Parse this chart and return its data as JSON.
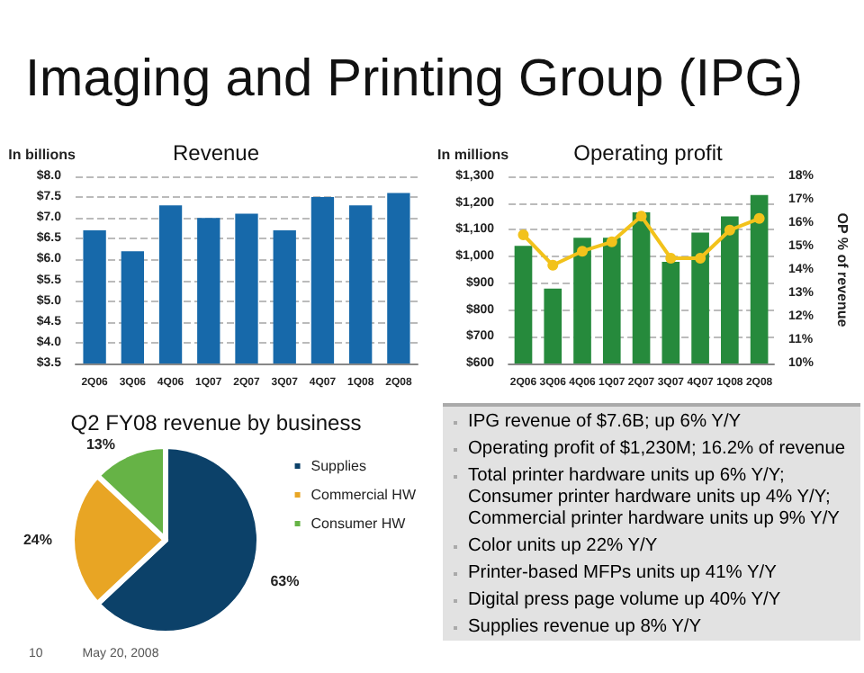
{
  "chart_data": [
    {
      "type": "other",
      "title": "Imaging and Printing Group (IPG)"
    },
    {
      "type": "bar",
      "title": "Revenue",
      "ylabel": "In billions",
      "categories": [
        "2Q06",
        "3Q06",
        "4Q06",
        "1Q07",
        "2Q07",
        "3Q07",
        "4Q07",
        "1Q08",
        "2Q08"
      ],
      "series": [
        {
          "color": "#1769aa",
          "values": [
            6.7,
            6.2,
            7.3,
            7.0,
            7.1,
            6.7,
            7.5,
            7.3,
            7.6
          ]
        }
      ],
      "ylim": [
        3.5,
        8.0
      ],
      "yticks": [
        {
          "value": 3.5,
          "label": "$3.5"
        },
        {
          "value": 4.0,
          "label": "$4.0"
        },
        {
          "value": 4.5,
          "label": "$4.5"
        },
        {
          "value": 5.0,
          "label": "$5.0"
        },
        {
          "value": 5.5,
          "label": "$5.5"
        },
        {
          "value": 6.0,
          "label": "$6.0"
        },
        {
          "value": 6.5,
          "label": "$6.5"
        },
        {
          "value": 7.0,
          "label": "$7.0"
        },
        {
          "value": 7.5,
          "label": "$7.5"
        },
        {
          "value": 8.0,
          "label": "$8.0"
        }
      ],
      "grid": "y"
    },
    {
      "type": "bar",
      "title": "Operating profit",
      "ylabel": "In millions",
      "y2label": "OP % of revenue",
      "categories": [
        "2Q06",
        "3Q06",
        "4Q06",
        "1Q07",
        "2Q07",
        "3Q07",
        "4Q07",
        "1Q08",
        "2Q08"
      ],
      "series": [
        {
          "type": "bar",
          "color": "#268a3c",
          "values": [
            1040,
            880,
            1070,
            1070,
            1165,
            980,
            1090,
            1150,
            1230
          ]
        },
        {
          "type": "line",
          "axis": "y2",
          "color": "#f2c21b",
          "values": [
            15.5,
            14.2,
            14.8,
            15.2,
            16.3,
            14.5,
            14.5,
            15.7,
            16.2
          ]
        }
      ],
      "ylim": [
        600,
        1300
      ],
      "yticks": [
        {
          "value": 600,
          "label": "$600"
        },
        {
          "value": 700,
          "label": "$700"
        },
        {
          "value": 800,
          "label": "$800"
        },
        {
          "value": 900,
          "label": "$900"
        },
        {
          "value": 1000,
          "label": "$1,000"
        },
        {
          "value": 1100,
          "label": "$1,100"
        },
        {
          "value": 1200,
          "label": "$1,200"
        },
        {
          "value": 1300,
          "label": "$1,300"
        }
      ],
      "y2lim": [
        10,
        18
      ],
      "y2ticks": [
        {
          "value": 10,
          "label": "10%"
        },
        {
          "value": 11,
          "label": "11%"
        },
        {
          "value": 12,
          "label": "12%"
        },
        {
          "value": 13,
          "label": "13%"
        },
        {
          "value": 14,
          "label": "14%"
        },
        {
          "value": 15,
          "label": "15%"
        },
        {
          "value": 16,
          "label": "16%"
        },
        {
          "value": 17,
          "label": "17%"
        },
        {
          "value": 18,
          "label": "18%"
        }
      ],
      "grid": "y",
      "marker": "circle"
    },
    {
      "type": "pie",
      "title": "Q2 FY08 revenue by business",
      "categories": [
        "Supplies",
        "Commercial HW",
        "Consumer HW"
      ],
      "values": [
        63,
        24,
        13
      ],
      "colors": [
        "#0c4169",
        "#e8a524",
        "#66b346"
      ],
      "value_labels": [
        "63%",
        "24%",
        "13%"
      ],
      "legend": "top right"
    },
    {
      "type": "other",
      "annotations": [
        "IPG revenue of $7.6B; up 6% Y/Y",
        "Operating profit of $1,230M; 16.2% of revenue",
        "Total printer hardware units up 6% Y/Y; Consumer printer hardware units up 4% Y/Y; Commercial printer hardware units up 9% Y/Y",
        "Color units up 22% Y/Y",
        "Printer-based MFPs units up 41% Y/Y",
        "Digital press page volume up 40% Y/Y",
        "Supplies revenue up 8% Y/Y"
      ]
    },
    {
      "type": "other",
      "annotations": [
        "10",
        "May 20, 2008"
      ]
    }
  ]
}
